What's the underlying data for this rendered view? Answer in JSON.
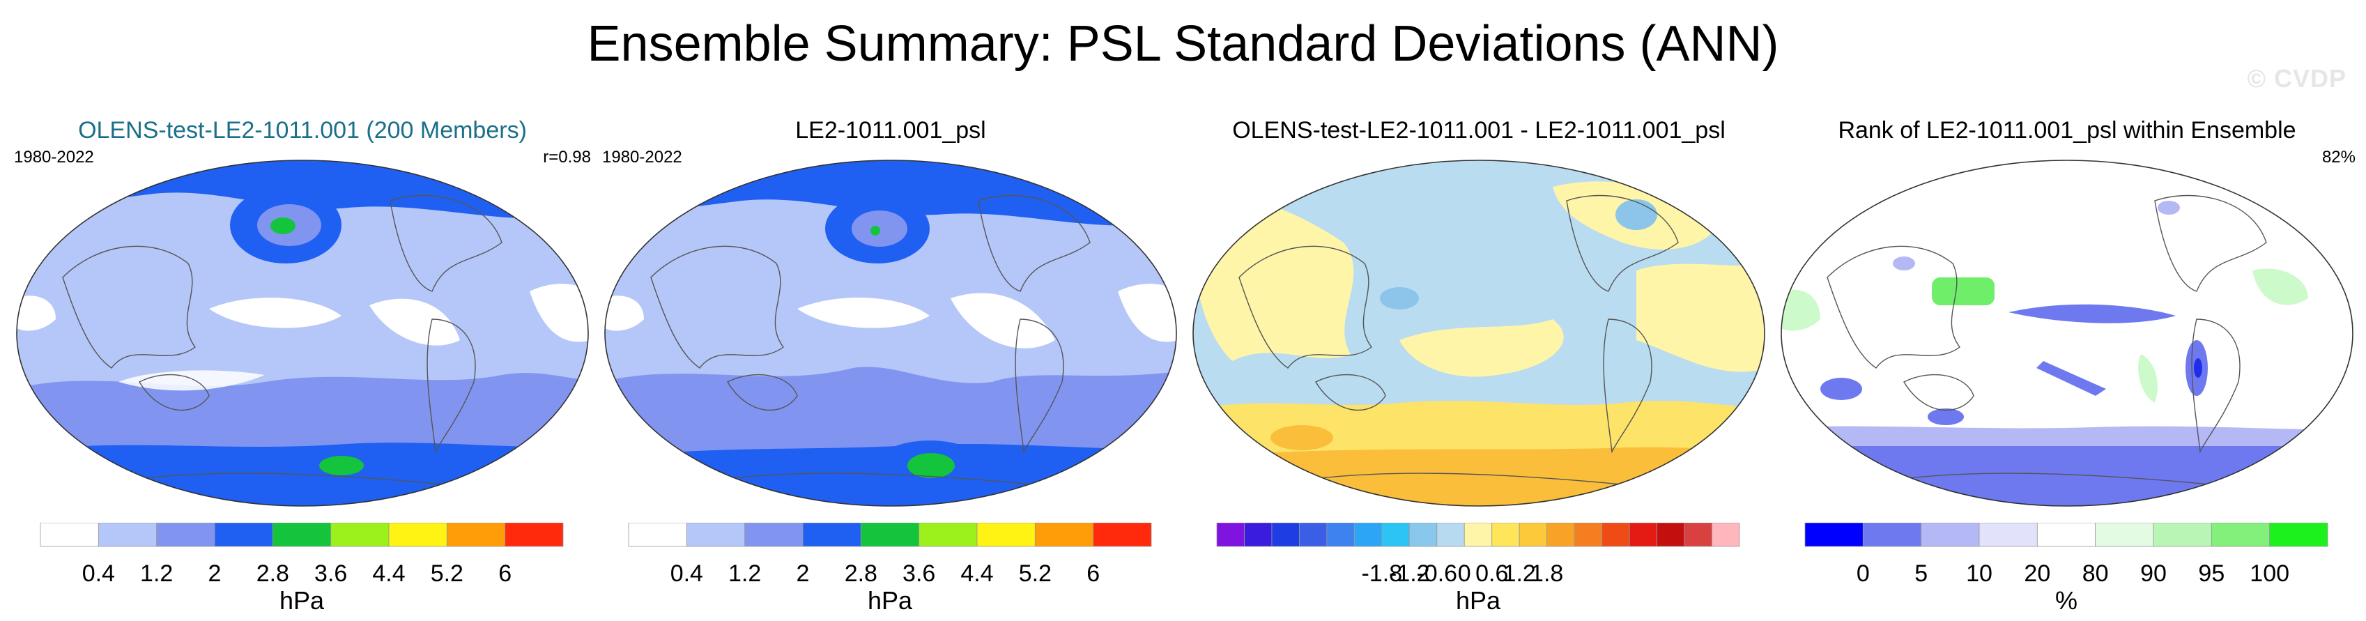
{
  "title": "Ensemble Summary: PSL Standard Deviations (ANN)",
  "watermark": "© CVDP",
  "panels": [
    {
      "title": "OLENS-test-LE2-1011.001 (200 Members)",
      "period": "1980-2022",
      "stat": "r=0.98",
      "map_colors": {
        "background": "#b5c6f8",
        "low": "#ffffff",
        "mid": "#8195f0",
        "high": "#1f60f2",
        "peak": "#14c43c"
      },
      "colorbar": {
        "colors": [
          "#ffffff",
          "#b5c6f8",
          "#8195f0",
          "#1f60f2",
          "#14c43c",
          "#9cf01b",
          "#fff314",
          "#ff9d09",
          "#ff2a0b"
        ],
        "ticks": [
          "0.4",
          "1.2",
          "2",
          "2.8",
          "3.6",
          "4.4",
          "5.2",
          "6"
        ],
        "unit": "hPa"
      }
    },
    {
      "title": "LE2-1011.001_psl",
      "period": "1980-2022",
      "stat": "",
      "map_colors": {
        "background": "#b5c6f8",
        "low": "#ffffff",
        "mid": "#8195f0",
        "high": "#1f60f2",
        "peak": "#14c43c"
      },
      "colorbar": {
        "colors": [
          "#ffffff",
          "#b5c6f8",
          "#8195f0",
          "#1f60f2",
          "#14c43c",
          "#9cf01b",
          "#fff314",
          "#ff9d09",
          "#ff2a0b"
        ],
        "ticks": [
          "0.4",
          "1.2",
          "2",
          "2.8",
          "3.6",
          "4.4",
          "5.2",
          "6"
        ],
        "unit": "hPa"
      }
    },
    {
      "title": "OLENS-test-LE2-1011.001 - LE2-1011.001_psl",
      "period": "",
      "stat": "",
      "map_colors": {
        "background": "#b9dcf0",
        "pos1": "#fff5a8",
        "pos2": "#fde367",
        "pos3": "#fbbe3a",
        "neg2": "#8cc4ea"
      },
      "colorbar": {
        "colors": [
          "#8013e0",
          "#3a1cde",
          "#1e3ee4",
          "#3a5ee6",
          "#3e82f0",
          "#2ba6f6",
          "#2cc4f5",
          "#8ac7ed",
          "#b8daf0",
          "#fff5a8",
          "#fee55a",
          "#fcc93a",
          "#f9a326",
          "#f57e21",
          "#ee4b16",
          "#e41b14",
          "#c40f0f",
          "#d94141",
          "#ffb6bd"
        ],
        "ticks": [
          "-1.8",
          "-1.2",
          "-0.6",
          "0",
          "0.6",
          "1.2",
          "1.8"
        ],
        "unit": "hPa"
      }
    },
    {
      "title": "Rank of LE2-1011.001_psl within Ensemble",
      "period": "",
      "stat": "82%",
      "map_colors": {
        "background": "#ffffff",
        "low": "#6e79f0",
        "lowest": "#1f2ee8",
        "high": "#6fee6a",
        "mid_high": "#cdfacb"
      },
      "colorbar": {
        "colors": [
          "#0000ff",
          "#6e79f0",
          "#b4b8f5",
          "#e2e2fb",
          "#ffffff",
          "#e4fbe3",
          "#b9f5b5",
          "#84f07c",
          "#1df11d"
        ],
        "ticks": [
          "0",
          "5",
          "10",
          "20",
          "80",
          "90",
          "95",
          "100"
        ],
        "unit": "%"
      }
    }
  ]
}
